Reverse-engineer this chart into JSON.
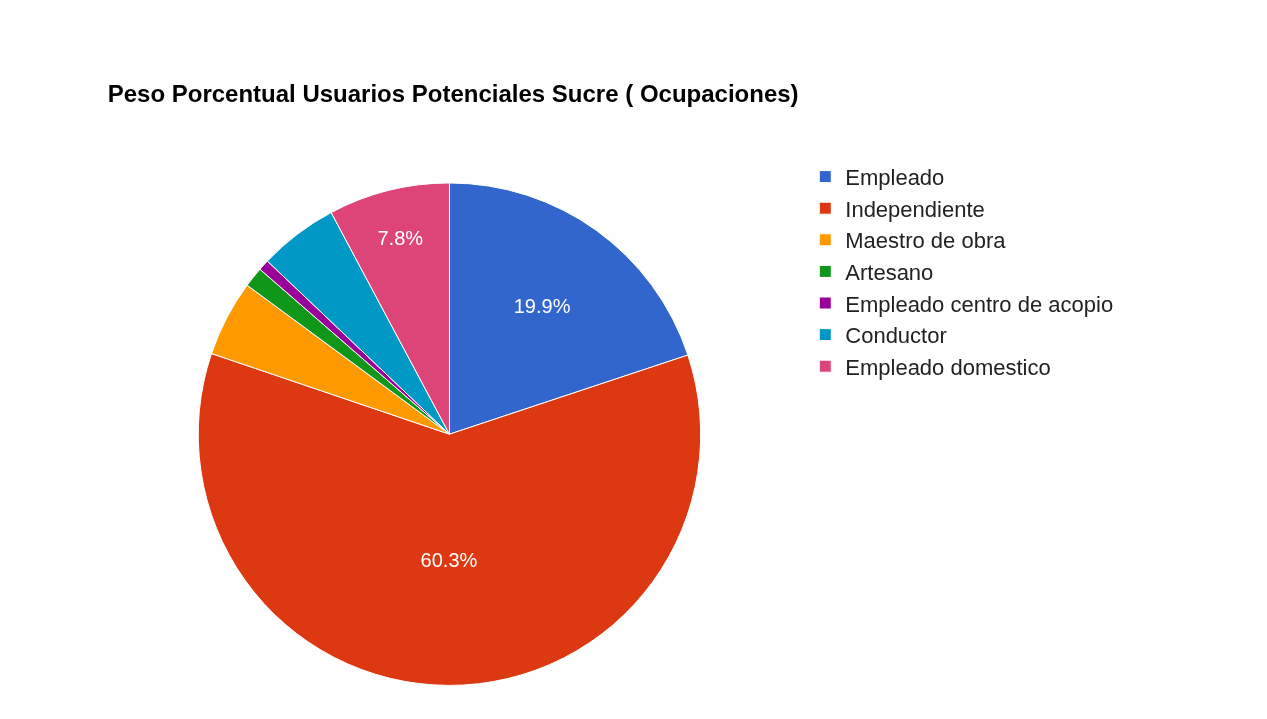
{
  "chart_data": {
    "type": "pie",
    "title": "Peso Porcentual Usuarios Potenciales Sucre ( Ocupaciones)",
    "categories": [
      "Empleado",
      "Independiente",
      "Maestro de obra",
      "Artesano",
      "Empleado centro de acopio",
      "Conductor",
      "Empleado domestico"
    ],
    "values": [
      19.9,
      60.3,
      4.9,
      1.3,
      0.7,
      5.1,
      7.8
    ],
    "value_labels": [
      "19.9%",
      "60.3%",
      null,
      null,
      null,
      null,
      "7.8%"
    ],
    "colors": [
      "#3366cc",
      "#dc3912",
      "#ff9900",
      "#109618",
      "#990099",
      "#0099c6",
      "#dd4477"
    ],
    "legend": "right"
  }
}
